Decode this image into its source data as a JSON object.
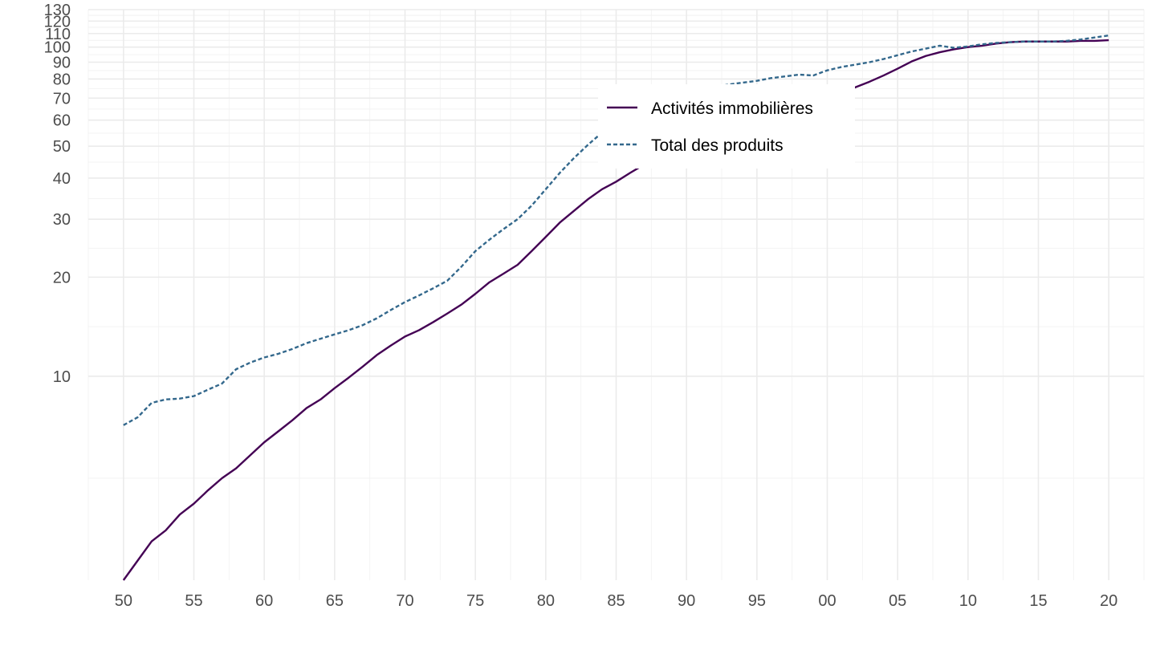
{
  "chart_data": {
    "type": "line",
    "title": "",
    "xlabel": "",
    "ylabel": "",
    "y_scale": "log",
    "ylim": [
      2.4,
      130
    ],
    "xlim": [
      1947.5,
      2022.5
    ],
    "grid": true,
    "legend_position": "top-center, inside plot",
    "x_tick_values": [
      1950,
      1955,
      1960,
      1965,
      1970,
      1975,
      1980,
      1985,
      1990,
      1995,
      2000,
      2005,
      2010,
      2015,
      2020
    ],
    "x_tick_labels": [
      "50",
      "55",
      "60",
      "65",
      "70",
      "75",
      "80",
      "85",
      "90",
      "95",
      "00",
      "05",
      "10",
      "15",
      "20"
    ],
    "y_tick_values": [
      10,
      20,
      30,
      40,
      50,
      60,
      70,
      80,
      90,
      100,
      110,
      120,
      130
    ],
    "y_tick_labels": [
      "10",
      "20",
      "30",
      "40",
      "50",
      "60",
      "70",
      "80",
      "90",
      "100",
      "110",
      "120",
      "130"
    ],
    "x": [
      1950,
      1951,
      1952,
      1953,
      1954,
      1955,
      1956,
      1957,
      1958,
      1959,
      1960,
      1961,
      1962,
      1963,
      1964,
      1965,
      1966,
      1967,
      1968,
      1969,
      1970,
      1971,
      1972,
      1973,
      1974,
      1975,
      1976,
      1977,
      1978,
      1979,
      1980,
      1981,
      1982,
      1983,
      1984,
      1985,
      1986,
      1987,
      1988,
      1989,
      1990,
      1991,
      1992,
      1993,
      1994,
      1995,
      1996,
      1997,
      1998,
      1999,
      2000,
      2001,
      2002,
      2003,
      2004,
      2005,
      2006,
      2007,
      2008,
      2009,
      2010,
      2011,
      2012,
      2013,
      2014,
      2015,
      2016,
      2017,
      2018,
      2019,
      2020
    ],
    "series": [
      {
        "name": "Activités immobilières",
        "color": "#440154",
        "dash": "solid",
        "values": [
          2.4,
          2.75,
          3.15,
          3.4,
          3.8,
          4.1,
          4.5,
          4.9,
          5.25,
          5.75,
          6.3,
          6.8,
          7.35,
          8.0,
          8.5,
          9.2,
          9.9,
          10.7,
          11.6,
          12.4,
          13.2,
          13.8,
          14.6,
          15.5,
          16.5,
          17.8,
          19.3,
          20.5,
          21.8,
          24.0,
          26.5,
          29.3,
          31.8,
          34.5,
          37.0,
          39.0,
          41.5,
          44.0,
          47.0,
          50.0,
          52.5,
          55.0,
          57.5,
          59.5,
          61.0,
          62.5,
          63.5,
          65.0,
          67.0,
          69.0,
          70.5,
          72.5,
          75.5,
          78.5,
          82.0,
          86.0,
          90.5,
          94.0,
          96.5,
          98.5,
          100.0,
          101.0,
          102.5,
          103.5,
          104.0,
          104.0,
          104.0,
          104.0,
          104.5,
          104.5,
          105.0
        ]
      },
      {
        "name": "Total des produits",
        "color": "#33688c",
        "dash": "dotted",
        "values": [
          7.1,
          7.5,
          8.3,
          8.5,
          8.55,
          8.7,
          9.1,
          9.5,
          10.5,
          11.0,
          11.4,
          11.7,
          12.1,
          12.6,
          13.0,
          13.4,
          13.8,
          14.3,
          15.0,
          15.9,
          16.8,
          17.6,
          18.5,
          19.5,
          21.5,
          24.0,
          26.0,
          28.0,
          30.0,
          33.0,
          37.0,
          41.5,
          46.0,
          50.5,
          55.0,
          59.0,
          61.0,
          63.0,
          65.0,
          68.0,
          70.5,
          73.0,
          75.5,
          77.0,
          78.0,
          79.0,
          80.5,
          81.5,
          82.5,
          82.0,
          85.0,
          87.0,
          88.5,
          90.0,
          92.0,
          94.5,
          97.0,
          99.0,
          101.0,
          99.5,
          100.5,
          102.0,
          103.0,
          103.5,
          104.0,
          104.0,
          104.0,
          104.5,
          105.5,
          107.0,
          108.5
        ]
      }
    ]
  }
}
